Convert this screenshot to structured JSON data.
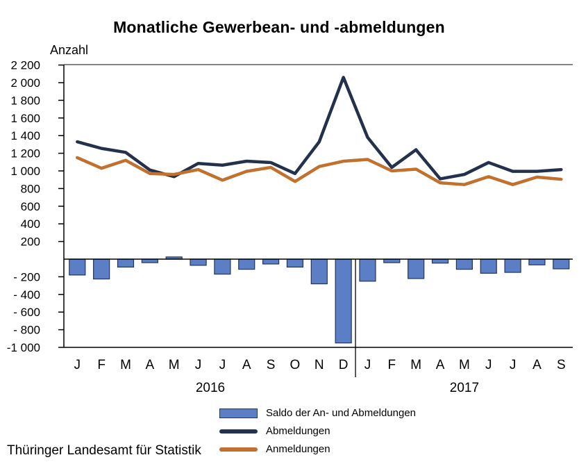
{
  "chart_data": {
    "type": "combo-bar-line",
    "title": "Monatliche Gewerbean- und -abmeldungen",
    "y_axis_label": "Anzahl",
    "source": "Thüringer Landesamt für Statistik",
    "ylim": [
      -1000,
      2200
    ],
    "grid": false,
    "legend_position": "bottom",
    "axis_color": "#000000",
    "frame_color": "#848484",
    "y_ticks": [
      {
        "label": "2 200",
        "value": 2200
      },
      {
        "label": "2 000",
        "value": 2000
      },
      {
        "label": "1 800",
        "value": 1800
      },
      {
        "label": "1 600",
        "value": 1600
      },
      {
        "label": "1 400",
        "value": 1400
      },
      {
        "label": "1 200",
        "value": 1200
      },
      {
        "label": "1 000",
        "value": 1000
      },
      {
        "label": "800",
        "value": 800
      },
      {
        "label": "600",
        "value": 600
      },
      {
        "label": "400",
        "value": 400
      },
      {
        "label": "200",
        "value": 200
      },
      {
        "label": "- 200",
        "value": -200
      },
      {
        "label": "- 400",
        "value": -400
      },
      {
        "label": "- 600",
        "value": -600
      },
      {
        "label": "- 800",
        "value": -800
      },
      {
        "label": "-1 000",
        "value": -1000
      }
    ],
    "months": [
      "J",
      "F",
      "M",
      "A",
      "M",
      "J",
      "J",
      "A",
      "S",
      "O",
      "N",
      "D",
      "J",
      "F",
      "M",
      "A",
      "M",
      "J",
      "J",
      "A",
      "S"
    ],
    "year_groups": [
      {
        "label": "2016",
        "start": 0,
        "count": 12
      },
      {
        "label": "2017",
        "start": 12,
        "count": 9
      }
    ],
    "series": [
      {
        "name": "Saldo der An- und Abmeldungen",
        "type": "bar",
        "color": "#5B7EC4",
        "border_color": "#24355C",
        "values": [
          -180,
          -225,
          -90,
          -40,
          25,
          -70,
          -170,
          -115,
          -55,
          -90,
          -280,
          -950,
          -250,
          -40,
          -220,
          -45,
          -115,
          -160,
          -150,
          -65,
          -110
        ]
      },
      {
        "name": "Abmeldungen",
        "type": "line",
        "color": "#24314D",
        "values": [
          1330,
          1255,
          1210,
          1010,
          935,
          1085,
          1065,
          1110,
          1095,
          970,
          1330,
          2060,
          1380,
          1040,
          1240,
          910,
          960,
          1095,
          995,
          995,
          1015
        ]
      },
      {
        "name": "Anmeldungen",
        "type": "line",
        "color": "#C2702D",
        "values": [
          1150,
          1030,
          1120,
          970,
          960,
          1015,
          895,
          995,
          1040,
          880,
          1050,
          1110,
          1130,
          1000,
          1020,
          865,
          845,
          935,
          845,
          930,
          905
        ]
      }
    ]
  }
}
